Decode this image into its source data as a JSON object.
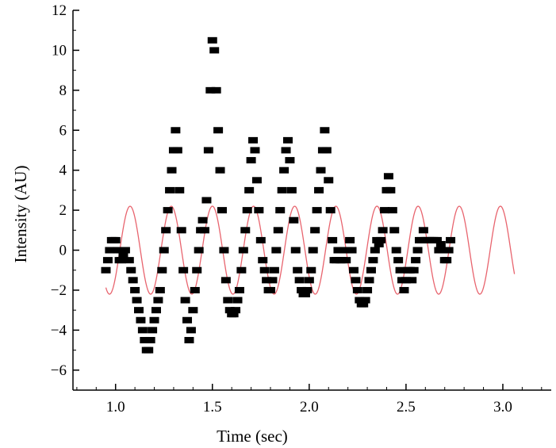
{
  "chart_data": {
    "type": "scatter",
    "title": "",
    "xlabel": "Time (sec)",
    "ylabel": "Intensity (AU)",
    "xlim": [
      0.78,
      3.25
    ],
    "ylim": [
      -7,
      12
    ],
    "xticks": [
      1.0,
      1.5,
      2.0,
      2.5,
      3.0
    ],
    "xtick_labels": [
      "1.0",
      "1.5",
      "2.0",
      "2.5",
      "3.0"
    ],
    "yticks": [
      -6,
      -4,
      -2,
      0,
      2,
      4,
      6,
      8,
      10,
      12
    ],
    "ytick_labels": [
      "−6",
      "−4",
      "−2",
      "0",
      "2",
      "4",
      "6",
      "8",
      "10",
      "12"
    ],
    "grid": false,
    "series": [
      {
        "kind": "markers",
        "marker": "square",
        "color": "#000000",
        "points": [
          [
            0.95,
            -1.0
          ],
          [
            0.96,
            -0.5
          ],
          [
            0.97,
            0.0
          ],
          [
            0.98,
            0.5
          ],
          [
            0.99,
            0.5
          ],
          [
            1.0,
            0.5
          ],
          [
            1.01,
            0.0
          ],
          [
            1.02,
            -0.5
          ],
          [
            1.03,
            -0.5
          ],
          [
            1.04,
            -0.3
          ],
          [
            1.05,
            0.0
          ],
          [
            1.07,
            -0.5
          ],
          [
            1.08,
            -1.0
          ],
          [
            1.09,
            -1.5
          ],
          [
            1.1,
            -2.0
          ],
          [
            1.11,
            -2.5
          ],
          [
            1.12,
            -3.0
          ],
          [
            1.13,
            -3.5
          ],
          [
            1.14,
            -4.0
          ],
          [
            1.15,
            -4.5
          ],
          [
            1.16,
            -5.0
          ],
          [
            1.17,
            -5.0
          ],
          [
            1.18,
            -4.5
          ],
          [
            1.19,
            -4.0
          ],
          [
            1.2,
            -3.5
          ],
          [
            1.21,
            -3.0
          ],
          [
            1.22,
            -2.5
          ],
          [
            1.23,
            -2.0
          ],
          [
            1.24,
            -1.0
          ],
          [
            1.25,
            0.0
          ],
          [
            1.26,
            1.0
          ],
          [
            1.27,
            2.0
          ],
          [
            1.28,
            3.0
          ],
          [
            1.29,
            4.0
          ],
          [
            1.3,
            5.0
          ],
          [
            1.31,
            6.0
          ],
          [
            1.32,
            5.0
          ],
          [
            1.33,
            3.0
          ],
          [
            1.34,
            1.0
          ],
          [
            1.35,
            -1.0
          ],
          [
            1.36,
            -2.5
          ],
          [
            1.37,
            -3.5
          ],
          [
            1.38,
            -4.5
          ],
          [
            1.39,
            -4.0
          ],
          [
            1.4,
            -3.0
          ],
          [
            1.41,
            -2.0
          ],
          [
            1.42,
            -1.0
          ],
          [
            1.43,
            0.0
          ],
          [
            1.44,
            1.0
          ],
          [
            1.45,
            1.5
          ],
          [
            1.46,
            1.0
          ],
          [
            1.47,
            2.5
          ],
          [
            1.48,
            5.0
          ],
          [
            1.49,
            8.0
          ],
          [
            1.5,
            10.5
          ],
          [
            1.51,
            10.0
          ],
          [
            1.52,
            8.0
          ],
          [
            1.53,
            6.0
          ],
          [
            1.54,
            4.0
          ],
          [
            1.55,
            2.0
          ],
          [
            1.56,
            0.0
          ],
          [
            1.57,
            -1.5
          ],
          [
            1.58,
            -2.5
          ],
          [
            1.59,
            -3.0
          ],
          [
            1.6,
            -3.2
          ],
          [
            1.61,
            -3.2
          ],
          [
            1.62,
            -3.0
          ],
          [
            1.63,
            -2.5
          ],
          [
            1.64,
            -2.0
          ],
          [
            1.65,
            -1.0
          ],
          [
            1.66,
            0.0
          ],
          [
            1.67,
            1.0
          ],
          [
            1.68,
            2.0
          ],
          [
            1.69,
            3.0
          ],
          [
            1.7,
            4.5
          ],
          [
            1.71,
            5.5
          ],
          [
            1.72,
            5.0
          ],
          [
            1.73,
            3.5
          ],
          [
            1.74,
            2.0
          ],
          [
            1.75,
            0.5
          ],
          [
            1.76,
            -0.5
          ],
          [
            1.77,
            -1.0
          ],
          [
            1.78,
            -1.5
          ],
          [
            1.79,
            -2.0
          ],
          [
            1.8,
            -2.0
          ],
          [
            1.81,
            -1.5
          ],
          [
            1.82,
            -1.0
          ],
          [
            1.83,
            0.0
          ],
          [
            1.84,
            1.0
          ],
          [
            1.85,
            2.0
          ],
          [
            1.86,
            3.0
          ],
          [
            1.87,
            4.0
          ],
          [
            1.88,
            5.0
          ],
          [
            1.89,
            5.5
          ],
          [
            1.9,
            4.5
          ],
          [
            1.91,
            3.0
          ],
          [
            1.92,
            1.5
          ],
          [
            1.93,
            0.0
          ],
          [
            1.94,
            -1.0
          ],
          [
            1.95,
            -1.5
          ],
          [
            1.96,
            -2.0
          ],
          [
            1.97,
            -2.2
          ],
          [
            1.98,
            -2.2
          ],
          [
            1.99,
            -2.0
          ],
          [
            2.0,
            -1.5
          ],
          [
            2.01,
            -1.0
          ],
          [
            2.02,
            0.0
          ],
          [
            2.03,
            1.0
          ],
          [
            2.04,
            2.0
          ],
          [
            2.05,
            3.0
          ],
          [
            2.06,
            4.0
          ],
          [
            2.07,
            5.0
          ],
          [
            2.08,
            6.0
          ],
          [
            2.09,
            5.0
          ],
          [
            2.1,
            3.5
          ],
          [
            2.11,
            2.0
          ],
          [
            2.12,
            0.5
          ],
          [
            2.13,
            -0.5
          ],
          [
            2.14,
            -0.5
          ],
          [
            2.15,
            0.0
          ],
          [
            2.16,
            -0.5
          ],
          [
            2.17,
            -0.5
          ],
          [
            2.18,
            0.0
          ],
          [
            2.19,
            -0.5
          ],
          [
            2.2,
            0.0
          ],
          [
            2.21,
            0.5
          ],
          [
            2.22,
            0.0
          ],
          [
            2.23,
            -1.0
          ],
          [
            2.24,
            -1.5
          ],
          [
            2.25,
            -2.0
          ],
          [
            2.26,
            -2.5
          ],
          [
            2.27,
            -2.7
          ],
          [
            2.28,
            -2.7
          ],
          [
            2.29,
            -2.5
          ],
          [
            2.3,
            -2.0
          ],
          [
            2.31,
            -1.5
          ],
          [
            2.32,
            -1.0
          ],
          [
            2.33,
            -0.5
          ],
          [
            2.34,
            0.0
          ],
          [
            2.35,
            0.5
          ],
          [
            2.36,
            0.3
          ],
          [
            2.37,
            0.5
          ],
          [
            2.38,
            1.0
          ],
          [
            2.39,
            2.0
          ],
          [
            2.4,
            3.0
          ],
          [
            2.41,
            3.7
          ],
          [
            2.42,
            3.0
          ],
          [
            2.43,
            2.0
          ],
          [
            2.44,
            1.0
          ],
          [
            2.45,
            0.0
          ],
          [
            2.46,
            -0.5
          ],
          [
            2.47,
            -1.0
          ],
          [
            2.48,
            -1.5
          ],
          [
            2.49,
            -2.0
          ],
          [
            2.5,
            -1.5
          ],
          [
            2.51,
            -1.0
          ],
          [
            2.52,
            -1.0
          ],
          [
            2.53,
            -1.5
          ],
          [
            2.54,
            -1.0
          ],
          [
            2.55,
            -0.5
          ],
          [
            2.56,
            0.0
          ],
          [
            2.57,
            0.5
          ],
          [
            2.58,
            0.5
          ],
          [
            2.59,
            1.0
          ],
          [
            2.6,
            0.5
          ],
          [
            2.61,
            0.5
          ],
          [
            2.62,
            0.5
          ],
          [
            2.63,
            0.5
          ],
          [
            2.64,
            0.5
          ],
          [
            2.65,
            0.5
          ],
          [
            2.66,
            0.5
          ],
          [
            2.67,
            0.0
          ],
          [
            2.68,
            0.3
          ],
          [
            2.69,
            0.0
          ],
          [
            2.7,
            -0.5
          ],
          [
            2.71,
            -0.5
          ],
          [
            2.72,
            0.0
          ],
          [
            2.73,
            0.5
          ]
        ]
      },
      {
        "kind": "line",
        "color": "#e8646e",
        "amplitude": 2.2,
        "period": 0.2125,
        "first_peak": 1.075,
        "x_start": 0.95,
        "x_end": 3.06
      }
    ]
  }
}
